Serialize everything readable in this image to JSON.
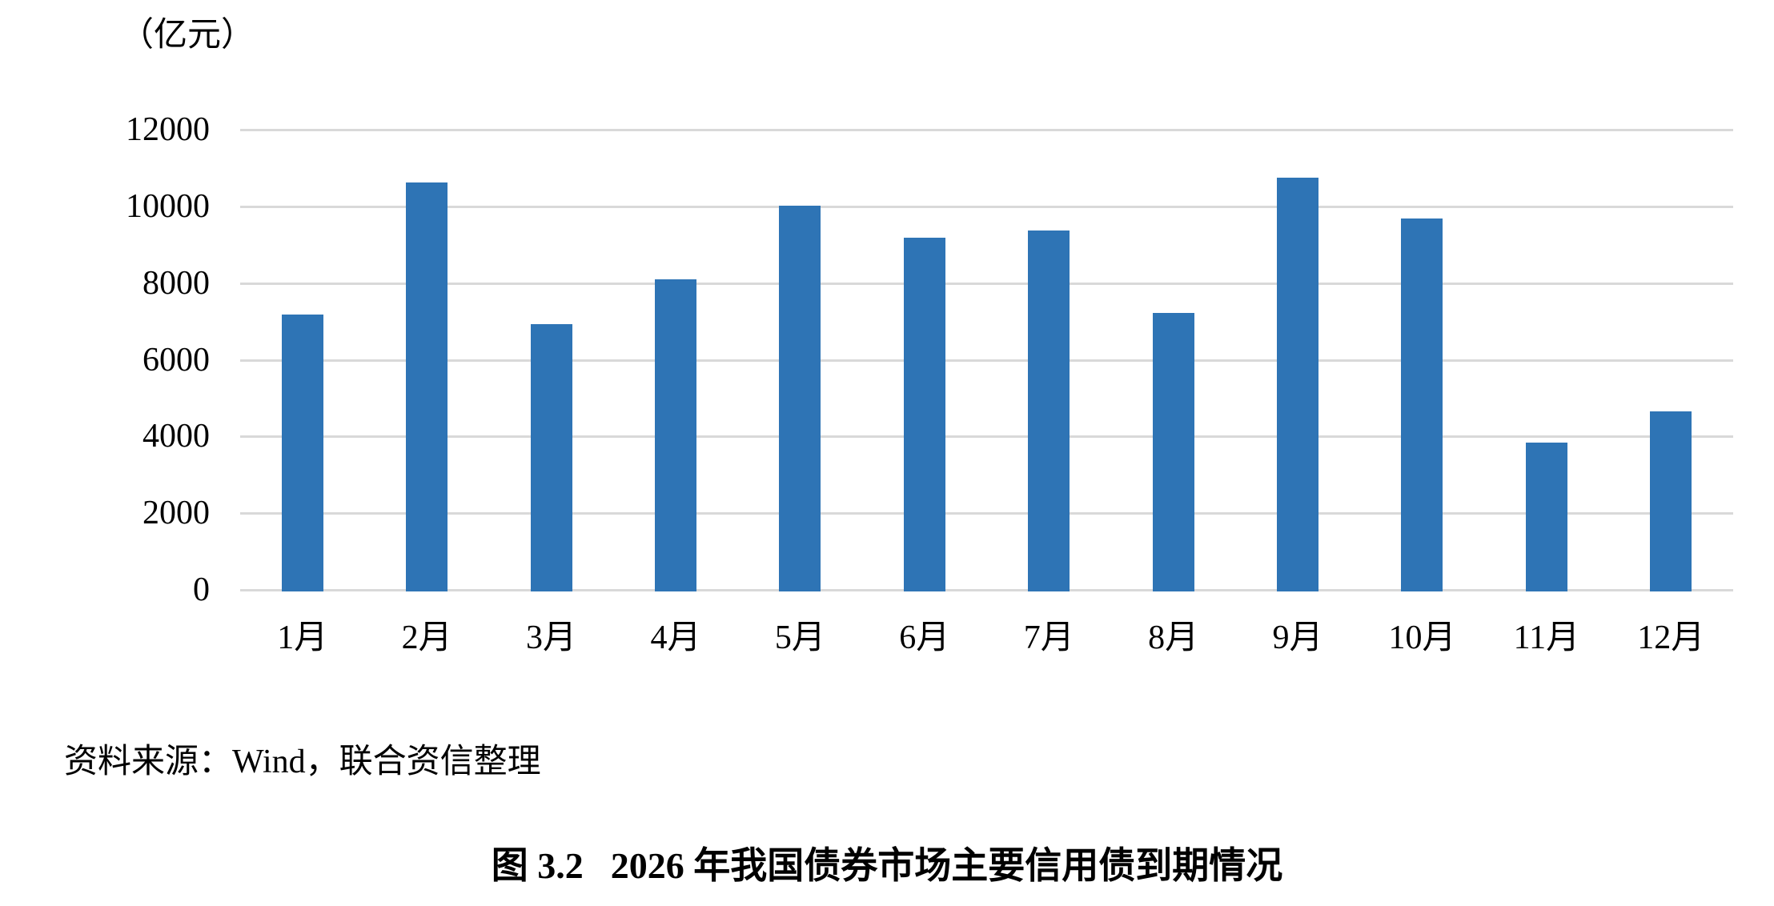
{
  "unit_label": "（亿元）",
  "source_note": "资料来源：Wind，联合资信整理",
  "caption": {
    "label": "图 3.2",
    "title": "2026 年我国债券市场主要信用债到期情况"
  },
  "colors": {
    "bar": "#2E74B5",
    "gridline": "#D9D9D9",
    "text": "#000000",
    "background": "#FFFFFF"
  },
  "chart_data": {
    "type": "bar",
    "title": "图 3.2 2026 年我国债券市场主要信用债到期情况",
    "xlabel": "",
    "ylabel": "（亿元）",
    "categories": [
      "1月",
      "2月",
      "3月",
      "4月",
      "5月",
      "6月",
      "7月",
      "8月",
      "9月",
      "10月",
      "11月",
      "12月"
    ],
    "values": [
      7230,
      10660,
      6970,
      8130,
      10060,
      9230,
      9420,
      7260,
      10790,
      9720,
      3880,
      4690
    ],
    "ylim": [
      0,
      12000
    ],
    "yticks": [
      0,
      2000,
      4000,
      6000,
      8000,
      10000,
      12000
    ],
    "grid": true,
    "legend": false
  }
}
